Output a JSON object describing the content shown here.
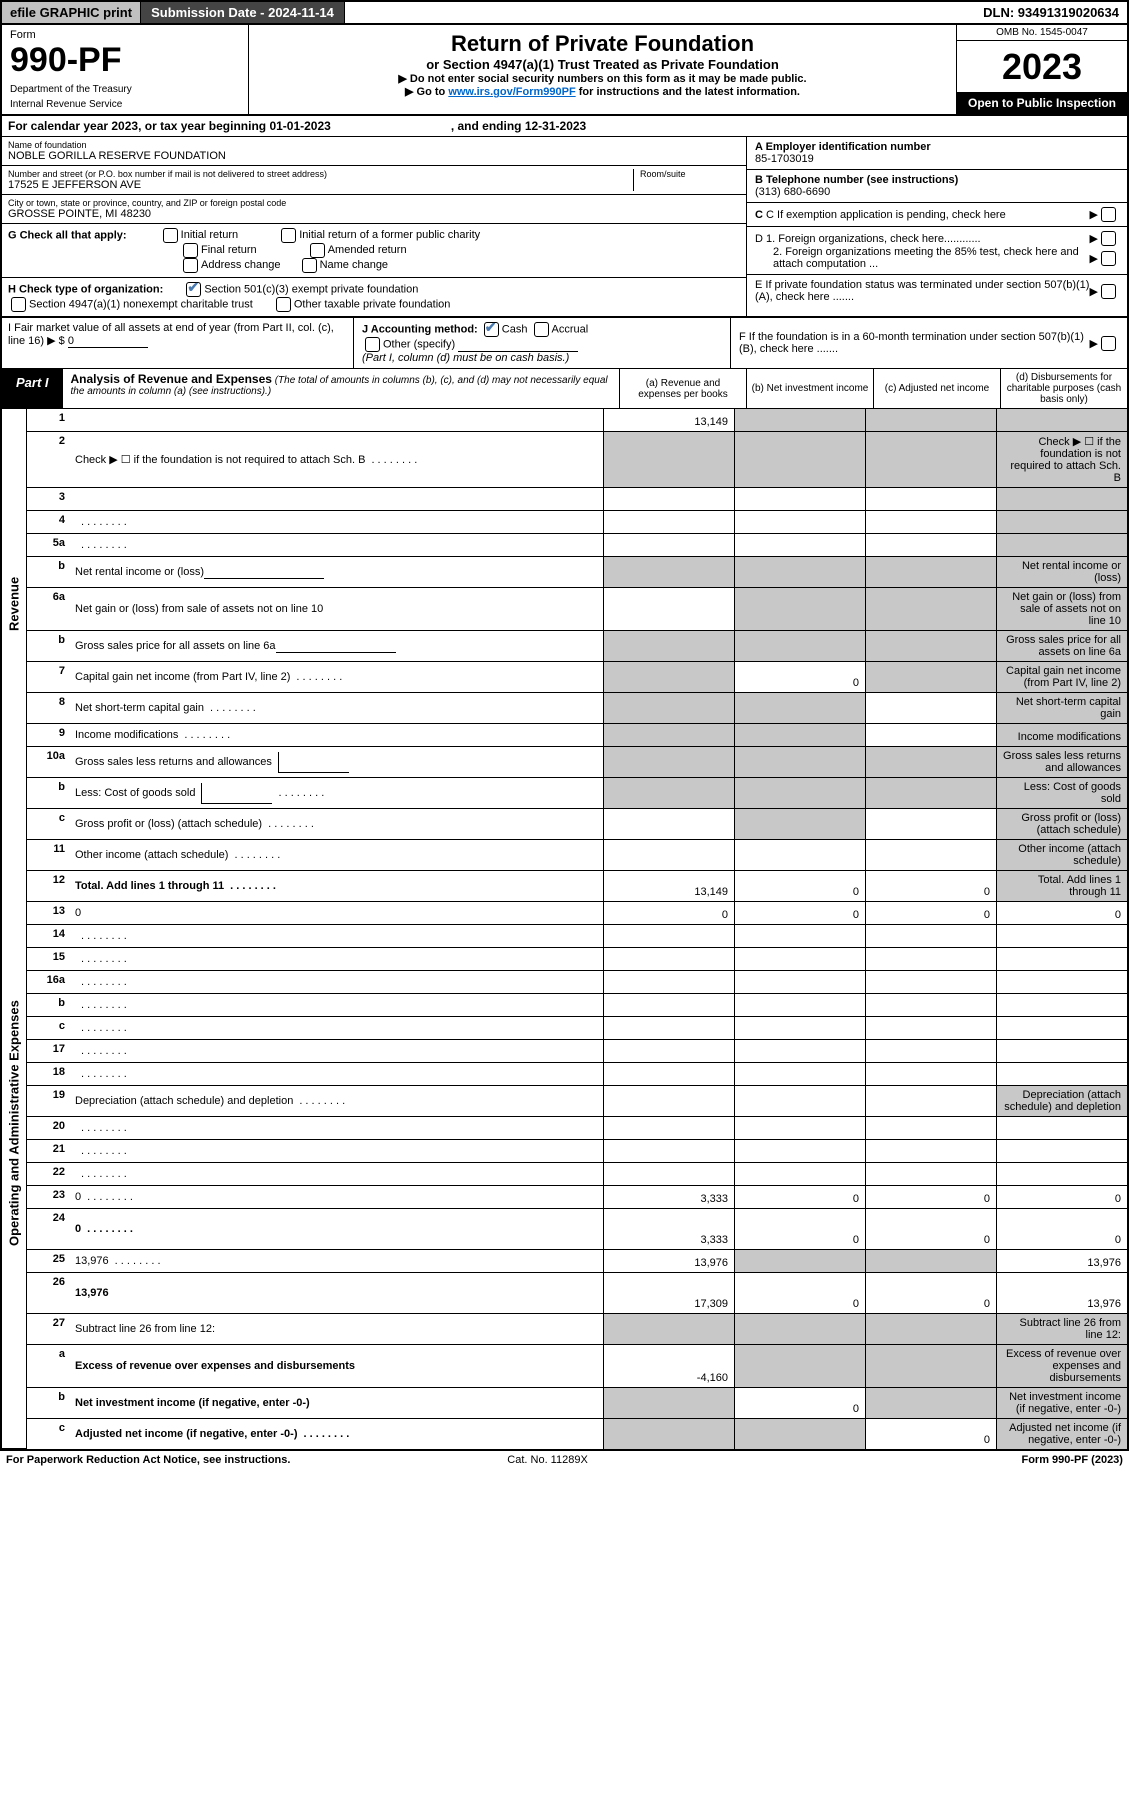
{
  "topbar": {
    "efile": "efile GRAPHIC print",
    "subdate_label": "Submission Date - 2024-11-14",
    "dln": "DLN: 93491319020634"
  },
  "header": {
    "form_label": "Form",
    "form_number": "990-PF",
    "dept1": "Department of the Treasury",
    "dept2": "Internal Revenue Service",
    "title": "Return of Private Foundation",
    "subtitle": "or Section 4947(a)(1) Trust Treated as Private Foundation",
    "note1": "▶ Do not enter social security numbers on this form as it may be made public.",
    "note2_pre": "▶ Go to ",
    "note2_link": "www.irs.gov/Form990PF",
    "note2_post": " for instructions and the latest information.",
    "omb": "OMB No. 1545-0047",
    "taxyear": "2023",
    "open_public": "Open to Public Inspection"
  },
  "calendar": {
    "text": "For calendar year 2023, or tax year beginning 01-01-2023",
    "end": ", and ending 12-31-2023"
  },
  "foundation": {
    "name_label": "Name of foundation",
    "name": "NOBLE GORILLA RESERVE FOUNDATION",
    "addr_label": "Number and street (or P.O. box number if mail is not delivered to street address)",
    "addr": "17525 E JEFFERSON AVE",
    "room_label": "Room/suite",
    "city_label": "City or town, state or province, country, and ZIP or foreign postal code",
    "city": "GROSSE POINTE, MI  48230"
  },
  "right_info": {
    "a_label": "A Employer identification number",
    "a_val": "85-1703019",
    "b_label": "B Telephone number (see instructions)",
    "b_val": "(313) 680-6690",
    "c_label": "C If exemption application is pending, check here",
    "d1": "D 1. Foreign organizations, check here............",
    "d2": "2. Foreign organizations meeting the 85% test, check here and attach computation ...",
    "e_label": "E  If private foundation status was terminated under section 507(b)(1)(A), check here .......",
    "f_label": "F  If the foundation is in a 60-month termination under section 507(b)(1)(B), check here ......."
  },
  "sec_g": {
    "label": "G Check all that apply:",
    "opts": [
      "Initial return",
      "Final return",
      "Address change",
      "Initial return of a former public charity",
      "Amended return",
      "Name change"
    ]
  },
  "sec_h": {
    "label": "H Check type of organization:",
    "opt1": "Section 501(c)(3) exempt private foundation",
    "opt2": "Section 4947(a)(1) nonexempt charitable trust",
    "opt3": "Other taxable private foundation"
  },
  "sec_i": {
    "label": "I Fair market value of all assets at end of year (from Part II, col. (c), line 16)",
    "val": "0",
    "j_label": "J Accounting method:",
    "j_cash": "Cash",
    "j_accrual": "Accrual",
    "j_other": "Other (specify)",
    "j_note": "(Part I, column (d) must be on cash basis.)"
  },
  "part1": {
    "label": "Part I",
    "title": "Analysis of Revenue and Expenses",
    "title_note": "(The total of amounts in columns (b), (c), and (d) may not necessarily equal the amounts in column (a) (see instructions).)",
    "col_a": "(a)   Revenue and expenses per books",
    "col_b": "(b)   Net investment income",
    "col_c": "(c)   Adjusted net income",
    "col_d": "(d)   Disbursements for charitable purposes (cash basis only)"
  },
  "sidelabels": {
    "revenue": "Revenue",
    "expenses": "Operating and Administrative Expenses"
  },
  "rows": [
    {
      "n": "1",
      "d": "",
      "a": "13,149",
      "b": "",
      "c": "",
      "grey_b": true,
      "grey_c": true,
      "grey_d": true
    },
    {
      "n": "2",
      "d": "Check ▶ ☐ if the foundation is not required to attach Sch. B",
      "dotted": true,
      "grey_a": true,
      "grey_b": true,
      "grey_c": true,
      "grey_d": true
    },
    {
      "n": "3",
      "d": "",
      "a": "",
      "b": "",
      "c": "",
      "grey_d": true
    },
    {
      "n": "4",
      "d": "",
      "dotted": true,
      "a": "",
      "b": "",
      "c": "",
      "grey_d": true
    },
    {
      "n": "5a",
      "d": "",
      "dotted": true,
      "a": "",
      "b": "",
      "c": "",
      "grey_d": true
    },
    {
      "n": "b",
      "d": "Net rental income or (loss)",
      "inline_line": true,
      "grey_a": true,
      "grey_b": true,
      "grey_c": true,
      "grey_d": true
    },
    {
      "n": "6a",
      "d": "Net gain or (loss) from sale of assets not on line 10",
      "a": "",
      "grey_b": true,
      "grey_c": true,
      "grey_d": true
    },
    {
      "n": "b",
      "d": "Gross sales price for all assets on line 6a",
      "inline_line": true,
      "grey_a": true,
      "grey_b": true,
      "grey_c": true,
      "grey_d": true
    },
    {
      "n": "7",
      "d": "Capital gain net income (from Part IV, line 2)",
      "dotted": true,
      "grey_a": true,
      "b": "0",
      "grey_c": true,
      "grey_d": true
    },
    {
      "n": "8",
      "d": "Net short-term capital gain",
      "dotted": true,
      "grey_a": true,
      "grey_b": true,
      "c": "",
      "grey_d": true
    },
    {
      "n": "9",
      "d": "Income modifications",
      "dotted": true,
      "grey_a": true,
      "grey_b": true,
      "c": "",
      "grey_d": true
    },
    {
      "n": "10a",
      "d": "Gross sales less returns and allowances",
      "small_cell": true,
      "grey_a": true,
      "grey_b": true,
      "grey_c": true,
      "grey_d": true
    },
    {
      "n": "b",
      "d": "Less: Cost of goods sold",
      "dotted": true,
      "small_cell": true,
      "grey_a": true,
      "grey_b": true,
      "grey_c": true,
      "grey_d": true
    },
    {
      "n": "c",
      "d": "Gross profit or (loss) (attach schedule)",
      "dotted": true,
      "a": "",
      "grey_b": true,
      "c": "",
      "grey_d": true
    },
    {
      "n": "11",
      "d": "Other income (attach schedule)",
      "dotted": true,
      "a": "",
      "b": "",
      "c": "",
      "grey_d": true
    },
    {
      "n": "12",
      "d": "Total. Add lines 1 through 11",
      "dotted": true,
      "bold": true,
      "a": "13,149",
      "b": "0",
      "c": "0",
      "grey_d": true
    },
    {
      "n": "13",
      "d": "0",
      "a": "0",
      "b": "0",
      "c": "0"
    },
    {
      "n": "14",
      "d": "",
      "dotted": true,
      "a": "",
      "b": "",
      "c": ""
    },
    {
      "n": "15",
      "d": "",
      "dotted": true,
      "a": "",
      "b": "",
      "c": ""
    },
    {
      "n": "16a",
      "d": "",
      "dotted": true,
      "a": "",
      "b": "",
      "c": ""
    },
    {
      "n": "b",
      "d": "",
      "dotted": true,
      "a": "",
      "b": "",
      "c": ""
    },
    {
      "n": "c",
      "d": "",
      "dotted": true,
      "a": "",
      "b": "",
      "c": ""
    },
    {
      "n": "17",
      "d": "",
      "dotted": true,
      "a": "",
      "b": "",
      "c": ""
    },
    {
      "n": "18",
      "d": "",
      "dotted": true,
      "a": "",
      "b": "",
      "c": ""
    },
    {
      "n": "19",
      "d": "Depreciation (attach schedule) and depletion",
      "dotted": true,
      "a": "",
      "b": "",
      "c": "",
      "grey_d": true
    },
    {
      "n": "20",
      "d": "",
      "dotted": true,
      "a": "",
      "b": "",
      "c": ""
    },
    {
      "n": "21",
      "d": "",
      "dotted": true,
      "a": "",
      "b": "",
      "c": ""
    },
    {
      "n": "22",
      "d": "",
      "dotted": true,
      "a": "",
      "b": "",
      "c": ""
    },
    {
      "n": "23",
      "d": "0",
      "dotted": true,
      "a": "3,333",
      "b": "0",
      "c": "0"
    },
    {
      "n": "24",
      "d": "0",
      "dotted": true,
      "bold": true,
      "a": "3,333",
      "b": "0",
      "c": "0",
      "tall": true
    },
    {
      "n": "25",
      "d": "13,976",
      "dotted": true,
      "a": "13,976",
      "grey_b": true,
      "grey_c": true
    },
    {
      "n": "26",
      "d": "13,976",
      "bold": true,
      "a": "17,309",
      "b": "0",
      "c": "0",
      "tall": true
    },
    {
      "n": "27",
      "d": "Subtract line 26 from line 12:",
      "grey_a": true,
      "grey_b": true,
      "grey_c": true,
      "grey_d": true
    },
    {
      "n": "a",
      "d": "Excess of revenue over expenses and disbursements",
      "bold": true,
      "a": "-4,160",
      "grey_b": true,
      "grey_c": true,
      "grey_d": true
    },
    {
      "n": "b",
      "d": "Net investment income (if negative, enter -0-)",
      "bold": true,
      "grey_a": true,
      "b": "0",
      "grey_c": true,
      "grey_d": true
    },
    {
      "n": "c",
      "d": "Adjusted net income (if negative, enter -0-)",
      "dotted": true,
      "bold": true,
      "grey_a": true,
      "grey_b": true,
      "c": "0",
      "grey_d": true
    }
  ],
  "footer": {
    "left": "For Paperwork Reduction Act Notice, see instructions.",
    "mid": "Cat. No. 11289X",
    "right": "Form 990-PF (2023)"
  },
  "colors": {
    "grey_cell": "#c8c8c8",
    "header_grey": "#c0c0c0",
    "dark_bar": "#444444",
    "link": "#0066cc",
    "check": "#4a7bb0"
  }
}
